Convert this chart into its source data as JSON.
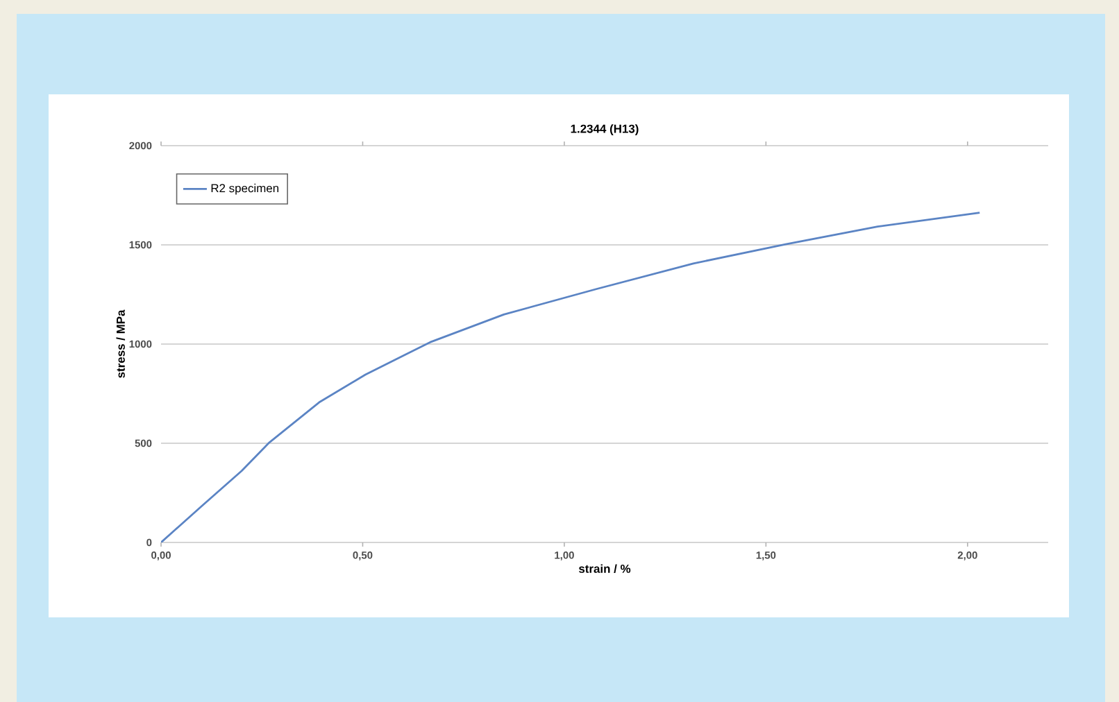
{
  "chart_data": {
    "type": "line",
    "title": "1.2344 (H13)",
    "xlabel": "strain / %",
    "ylabel": "stress / MPa",
    "series": [
      {
        "name": "R2 specimen",
        "color": "#5b84c4",
        "x": [
          0,
          0.1,
          0.2,
          0.267,
          0.392,
          0.507,
          0.667,
          0.85,
          1.079,
          1.32,
          1.549,
          1.777,
          2.03
        ],
        "values": [
          0,
          182,
          361,
          501,
          706,
          846,
          1009,
          1149,
          1277,
          1406,
          1503,
          1592,
          1662
        ]
      }
    ],
    "xlim": [
      0,
      2.2
    ],
    "xticks": [
      {
        "value": 0,
        "label": "0,00"
      },
      {
        "value": 0.5,
        "label": "0,50"
      },
      {
        "value": 1,
        "label": "1,00"
      },
      {
        "value": 1.5,
        "label": "1,50"
      },
      {
        "value": 2,
        "label": "2,00"
      }
    ],
    "ylim": [
      0,
      2000
    ],
    "yticks": [
      0,
      500,
      1000,
      1500,
      2000
    ],
    "grid": "y",
    "legend": "top left",
    "marker": "none",
    "line_style": "solid"
  }
}
